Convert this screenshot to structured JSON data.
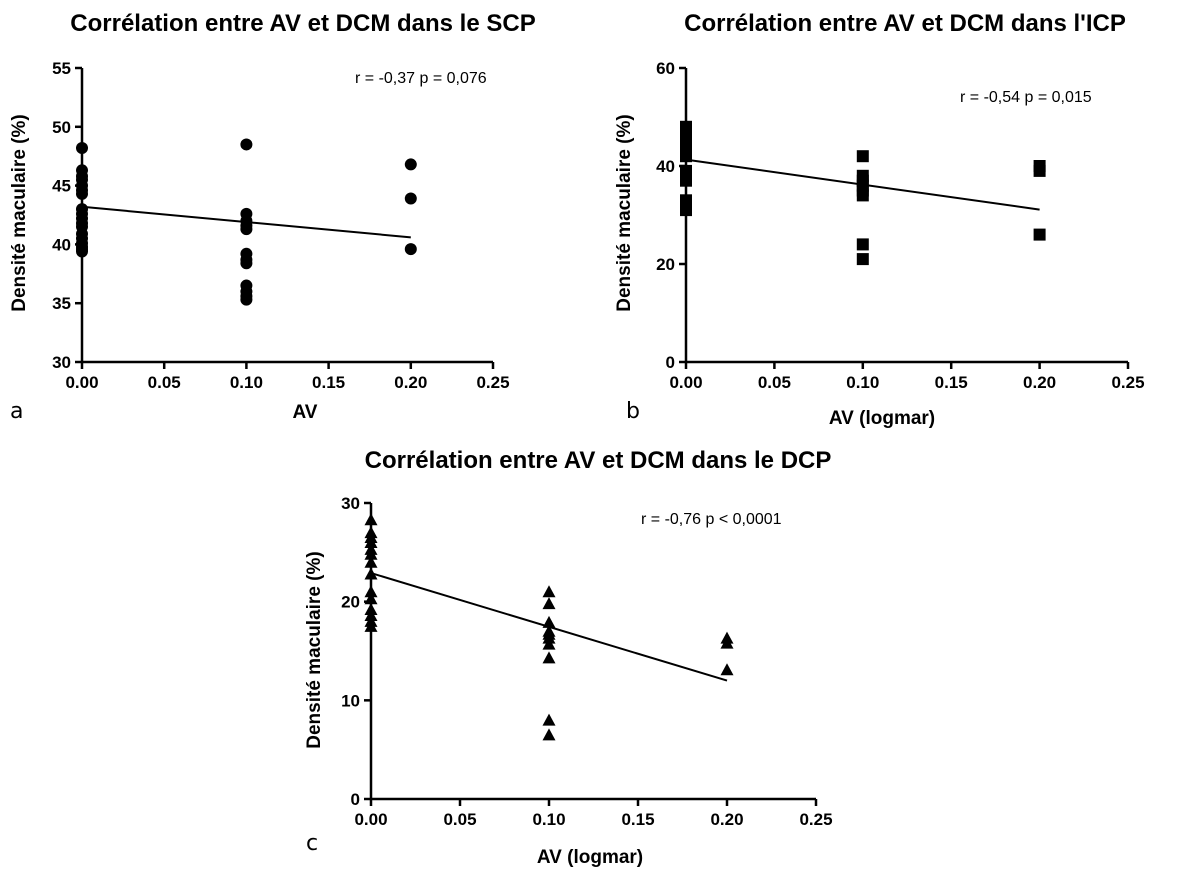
{
  "chart_data": [
    {
      "type": "scatter",
      "panel_label": "a",
      "title": "Corrélation entre AV et DCM dans le SCP",
      "xlabel": "AV",
      "ylabel": "Densité maculaire (%)",
      "xlim": [
        0,
        0.25
      ],
      "ylim": [
        30,
        55
      ],
      "x_ticks": [
        "0.00",
        "0.05",
        "0.10",
        "0.15",
        "0.20",
        "0.25"
      ],
      "y_ticks": [
        "30",
        "35",
        "40",
        "45",
        "50",
        "55"
      ],
      "marker": "circle",
      "annotation": "r = -0,37 p = 0,076",
      "regression": {
        "x": [
          0,
          0.2
        ],
        "y": [
          43.2,
          40.6
        ]
      },
      "points": {
        "x": [
          0,
          0,
          0,
          0,
          0,
          0,
          0,
          0,
          0,
          0,
          0,
          0,
          0,
          0,
          0,
          0,
          0,
          0,
          0.1,
          0.1,
          0.1,
          0.1,
          0.1,
          0.1,
          0.1,
          0.1,
          0.1,
          0.1,
          0.1,
          0.1,
          0.2,
          0.2,
          0.2
        ],
        "y": [
          48.2,
          46.3,
          45.8,
          45.5,
          45.0,
          44.6,
          44.3,
          43.0,
          42.2,
          41.8,
          41.5,
          40.9,
          40.5,
          40.1,
          39.8,
          39.6,
          39.4,
          42.6,
          48.5,
          42.6,
          42.0,
          41.6,
          41.3,
          39.2,
          38.7,
          38.4,
          36.5,
          36.0,
          35.6,
          35.3,
          46.8,
          43.9,
          39.6
        ]
      }
    },
    {
      "type": "scatter",
      "panel_label": "b",
      "title": "Corrélation entre AV et DCM dans l'ICP",
      "xlabel": "AV (logmar)",
      "ylabel": "Densité maculaire (%)",
      "xlim": [
        0,
        0.25
      ],
      "ylim": [
        0,
        60
      ],
      "x_ticks": [
        "0.00",
        "0.05",
        "0.10",
        "0.15",
        "0.20",
        "0.25"
      ],
      "y_ticks": [
        "0",
        "20",
        "40",
        "60"
      ],
      "marker": "square",
      "annotation": "r = -0,54 p = 0,015",
      "regression": {
        "x": [
          0,
          0.2
        ],
        "y": [
          41.3,
          31.1
        ]
      },
      "points": {
        "x": [
          0,
          0,
          0,
          0,
          0,
          0,
          0,
          0,
          0,
          0,
          0,
          0,
          0.1,
          0.1,
          0.1,
          0.1,
          0.1,
          0.1,
          0.1,
          0.1,
          0.2,
          0.2,
          0.2
        ],
        "y": [
          48,
          47,
          46,
          45,
          44,
          43,
          42,
          39,
          38,
          37,
          33,
          31,
          42,
          38,
          37,
          35,
          34,
          24,
          21,
          36,
          40,
          39,
          26
        ]
      }
    },
    {
      "type": "scatter",
      "panel_label": "c",
      "title": "Corrélation entre AV et DCM dans le DCP",
      "xlabel": "AV (logmar)",
      "ylabel": "Densité maculaire (%)",
      "xlim": [
        0,
        0.25
      ],
      "ylim": [
        0,
        30
      ],
      "x_ticks": [
        "0.00",
        "0.05",
        "0.10",
        "0.15",
        "0.20",
        "0.25"
      ],
      "y_ticks": [
        "0",
        "10",
        "20",
        "30"
      ],
      "marker": "triangle",
      "annotation": "r = -0,76 p < 0,0001",
      "regression": {
        "x": [
          0,
          0.2
        ],
        "y": [
          22.9,
          12.0
        ]
      },
      "points": {
        "x": [
          0,
          0,
          0,
          0,
          0,
          0,
          0,
          0,
          0,
          0,
          0,
          0,
          0,
          0,
          0.1,
          0.1,
          0.1,
          0.1,
          0.1,
          0.1,
          0.1,
          0.1,
          0.1,
          0.1,
          0.2,
          0.2,
          0.2
        ],
        "y": [
          28.3,
          27.0,
          26.5,
          26.0,
          25.3,
          24.8,
          24.0,
          22.8,
          21.0,
          20.3,
          19.2,
          18.6,
          18.0,
          17.5,
          21.0,
          19.8,
          17.9,
          17.0,
          16.7,
          15.7,
          14.3,
          8.0,
          6.5,
          16.3,
          16.3,
          15.8,
          13.1
        ]
      }
    }
  ]
}
